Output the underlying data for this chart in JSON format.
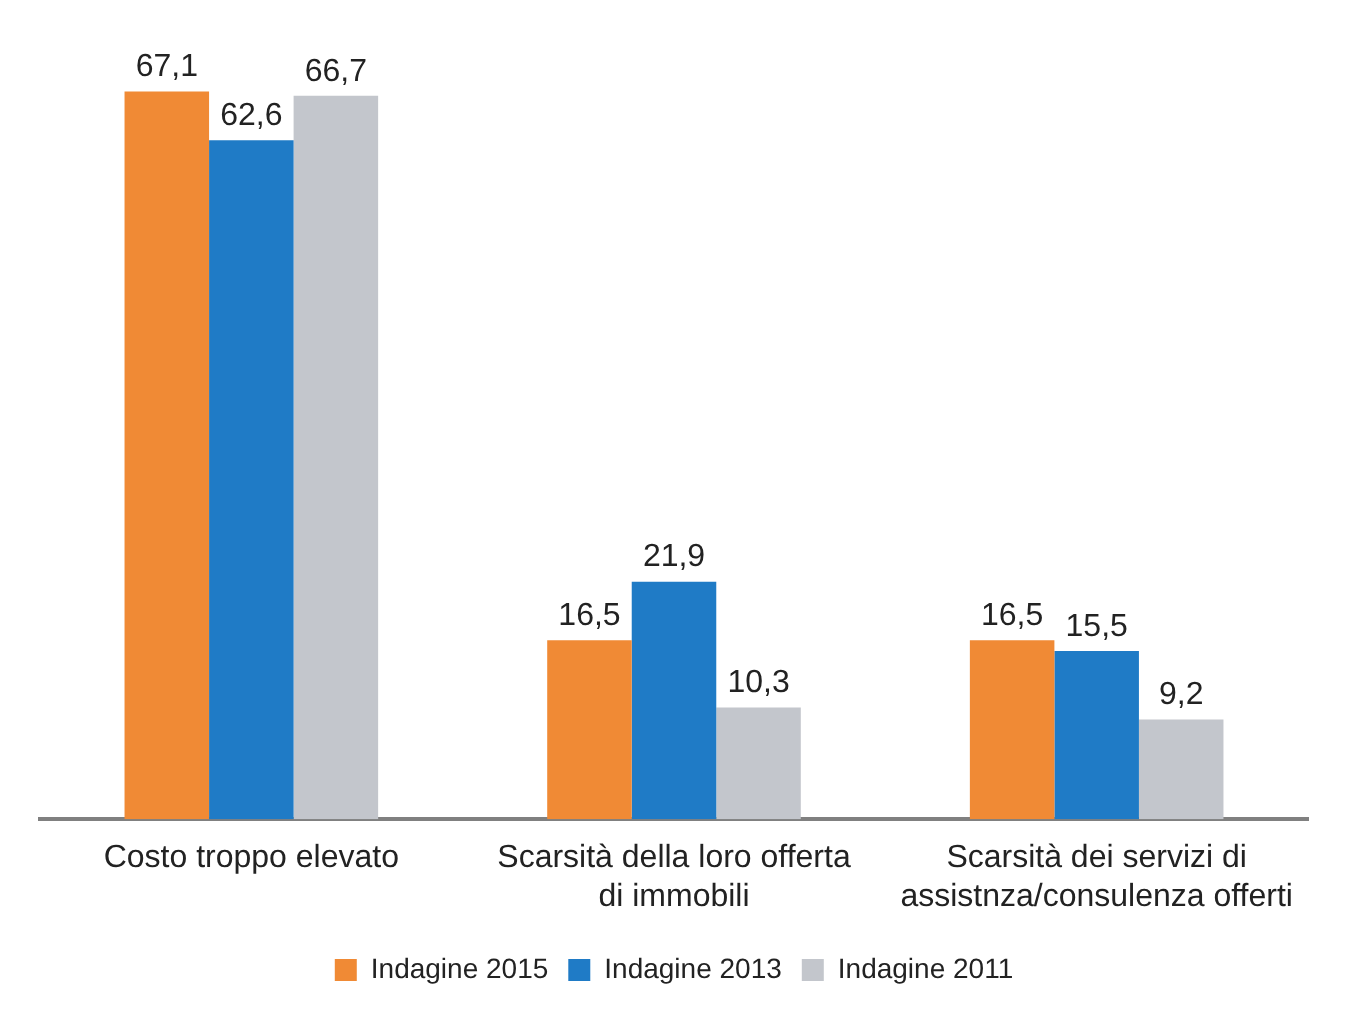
{
  "chart_data": {
    "type": "bar",
    "categories": [
      "Costo troppo elevato",
      "Scarsità della loro offerta di immobili",
      "Scarsità dei servizi di assistnza/consulenza offerti"
    ],
    "series": [
      {
        "name": "Indagine 2015",
        "color": "#f08a35",
        "values": [
          67.1,
          16.5,
          16.5
        ],
        "value_labels": [
          "67,1",
          "16,5",
          "16,5"
        ]
      },
      {
        "name": "Indagine 2013",
        "color": "#1f7bc6",
        "values": [
          62.6,
          21.9,
          15.5
        ],
        "value_labels": [
          "62,6",
          "21,9",
          "15,5"
        ]
      },
      {
        "name": "Indagine 2011",
        "color": "#c3c6cc",
        "values": [
          66.7,
          10.3,
          9.2
        ],
        "value_labels": [
          "66,7",
          "10,3",
          "9,2"
        ]
      }
    ],
    "legend": "bottom",
    "grid": false
  }
}
